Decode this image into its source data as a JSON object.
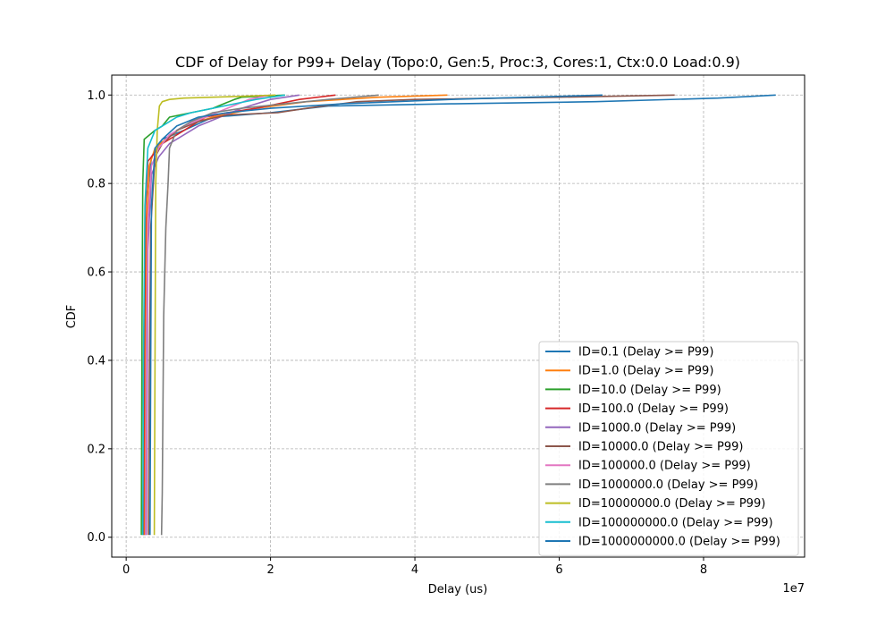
{
  "chart_data": {
    "type": "line",
    "title": "CDF of Delay for P99+ Delay (Topo:0, Gen:5, Proc:3, Cores:1, Ctx:0.0 Load:0.9)",
    "xlabel": "Delay (us)",
    "ylabel": "CDF",
    "x_offset_label": "1e7",
    "xlim": [
      -2000000,
      94000000
    ],
    "ylim": [
      -0.045,
      1.045
    ],
    "x_ticks": [
      0,
      20000000,
      40000000,
      60000000,
      80000000
    ],
    "x_tick_labels": [
      "0",
      "2",
      "4",
      "6",
      "8"
    ],
    "y_ticks": [
      0.0,
      0.2,
      0.4,
      0.6,
      0.8,
      1.0
    ],
    "y_tick_labels": [
      "0.0",
      "0.2",
      "0.4",
      "0.6",
      "0.8",
      "1.0"
    ],
    "grid": true,
    "legend_position": "lower-right",
    "series": [
      {
        "name": "ID=0.1 (Delay >= P99)",
        "color": "#1f77b4",
        "x": [
          2600000,
          2700000,
          2800000,
          3000000,
          3500000,
          5000000,
          8000000,
          12000000,
          20000000,
          28000000,
          45000000,
          65000000,
          82000000,
          90000000
        ],
        "y": [
          0.005,
          0.3,
          0.6,
          0.78,
          0.86,
          0.9,
          0.92,
          0.95,
          0.96,
          0.975,
          0.98,
          0.985,
          0.993,
          1.0
        ]
      },
      {
        "name": "ID=1.0 (Delay >= P99)",
        "color": "#ff7f0e",
        "x": [
          2500000,
          2600000,
          2800000,
          3200000,
          4000000,
          5500000,
          8000000,
          12000000,
          18000000,
          25000000,
          35000000,
          44500000
        ],
        "y": [
          0.005,
          0.4,
          0.7,
          0.84,
          0.88,
          0.9,
          0.93,
          0.95,
          0.97,
          0.985,
          0.995,
          1.0
        ]
      },
      {
        "name": "ID=10.0 (Delay >= P99)",
        "color": "#2ca02c",
        "x": [
          2100000,
          2200000,
          2300000,
          2500000,
          4000000,
          5000000,
          6000000,
          9000000,
          12000000,
          15000000,
          16000000,
          22000000
        ],
        "y": [
          0.005,
          0.5,
          0.8,
          0.9,
          0.92,
          0.93,
          0.95,
          0.96,
          0.97,
          0.99,
          0.995,
          1.0
        ]
      },
      {
        "name": "ID=100.0 (Delay >= P99)",
        "color": "#d62728",
        "x": [
          2400000,
          2500000,
          2700000,
          3000000,
          4000000,
          5000000,
          7000000,
          9000000,
          11000000,
          14000000,
          18000000,
          24000000,
          29000000
        ],
        "y": [
          0.005,
          0.4,
          0.75,
          0.85,
          0.87,
          0.89,
          0.91,
          0.93,
          0.95,
          0.96,
          0.97,
          0.99,
          1.0
        ]
      },
      {
        "name": "ID=1000.0 (Delay >= P99)",
        "color": "#9467bd",
        "x": [
          2800000,
          2900000,
          3000000,
          3500000,
          4500000,
          6000000,
          8000000,
          10000000,
          13000000,
          16000000,
          20000000,
          24000000
        ],
        "y": [
          0.005,
          0.3,
          0.65,
          0.82,
          0.86,
          0.89,
          0.91,
          0.93,
          0.95,
          0.97,
          0.99,
          1.0
        ]
      },
      {
        "name": "ID=10000.0 (Delay >= P99)",
        "color": "#8c564b",
        "x": [
          3100000,
          3200000,
          3400000,
          4000000,
          5000000,
          7000000,
          10000000,
          14000000,
          21000000,
          25000000,
          32000000,
          40000000,
          60000000,
          76000000
        ],
        "y": [
          0.005,
          0.35,
          0.7,
          0.86,
          0.89,
          0.92,
          0.94,
          0.955,
          0.96,
          0.97,
          0.985,
          0.99,
          0.995,
          1.0
        ]
      },
      {
        "name": "ID=100000.0 (Delay >= P99)",
        "color": "#e377c2",
        "x": [
          2700000,
          2800000,
          3000000,
          3500000,
          4500000,
          6000000,
          8000000,
          11000000,
          14000000,
          17000000,
          20000000
        ],
        "y": [
          0.005,
          0.4,
          0.72,
          0.84,
          0.88,
          0.91,
          0.93,
          0.95,
          0.97,
          0.99,
          1.0
        ]
      },
      {
        "name": "ID=1000000.0 (Delay >= P99)",
        "color": "#7f7f7f",
        "x": [
          4900000,
          5000000,
          5200000,
          5500000,
          5800000,
          6000000,
          7000000,
          9000000,
          12000000,
          16000000,
          22000000,
          28000000,
          35000000
        ],
        "y": [
          0.005,
          0.1,
          0.5,
          0.7,
          0.8,
          0.88,
          0.92,
          0.94,
          0.96,
          0.97,
          0.98,
          0.99,
          1.0
        ]
      },
      {
        "name": "ID=10000000.0 (Delay >= P99)",
        "color": "#bcbd22",
        "x": [
          3900000,
          4000000,
          4100000,
          4300000,
          4600000,
          5000000,
          6000000,
          8000000,
          12000000,
          16000000,
          20700000
        ],
        "y": [
          0.005,
          0.4,
          0.8,
          0.92,
          0.975,
          0.985,
          0.99,
          0.993,
          0.995,
          0.997,
          1.0
        ]
      },
      {
        "name": "ID=100000000.0 (Delay >= P99)",
        "color": "#17becf",
        "x": [
          2300000,
          2400000,
          2600000,
          3000000,
          4000000,
          5000000,
          6000000,
          7000000,
          9000000,
          12000000,
          15000000,
          18000000,
          22000000
        ],
        "y": [
          0.005,
          0.4,
          0.75,
          0.88,
          0.92,
          0.93,
          0.94,
          0.95,
          0.96,
          0.97,
          0.98,
          0.99,
          1.0
        ]
      },
      {
        "name": "ID=1000000000.0 (Delay >= P99)",
        "color": "#1f77b4",
        "x": [
          3300000,
          3400000,
          3500000,
          4000000,
          5000000,
          7000000,
          10000000,
          14000000,
          20000000,
          30000000,
          45000000,
          66000000
        ],
        "y": [
          0.005,
          0.4,
          0.75,
          0.88,
          0.9,
          0.93,
          0.95,
          0.96,
          0.97,
          0.98,
          0.99,
          1.0
        ]
      }
    ]
  }
}
